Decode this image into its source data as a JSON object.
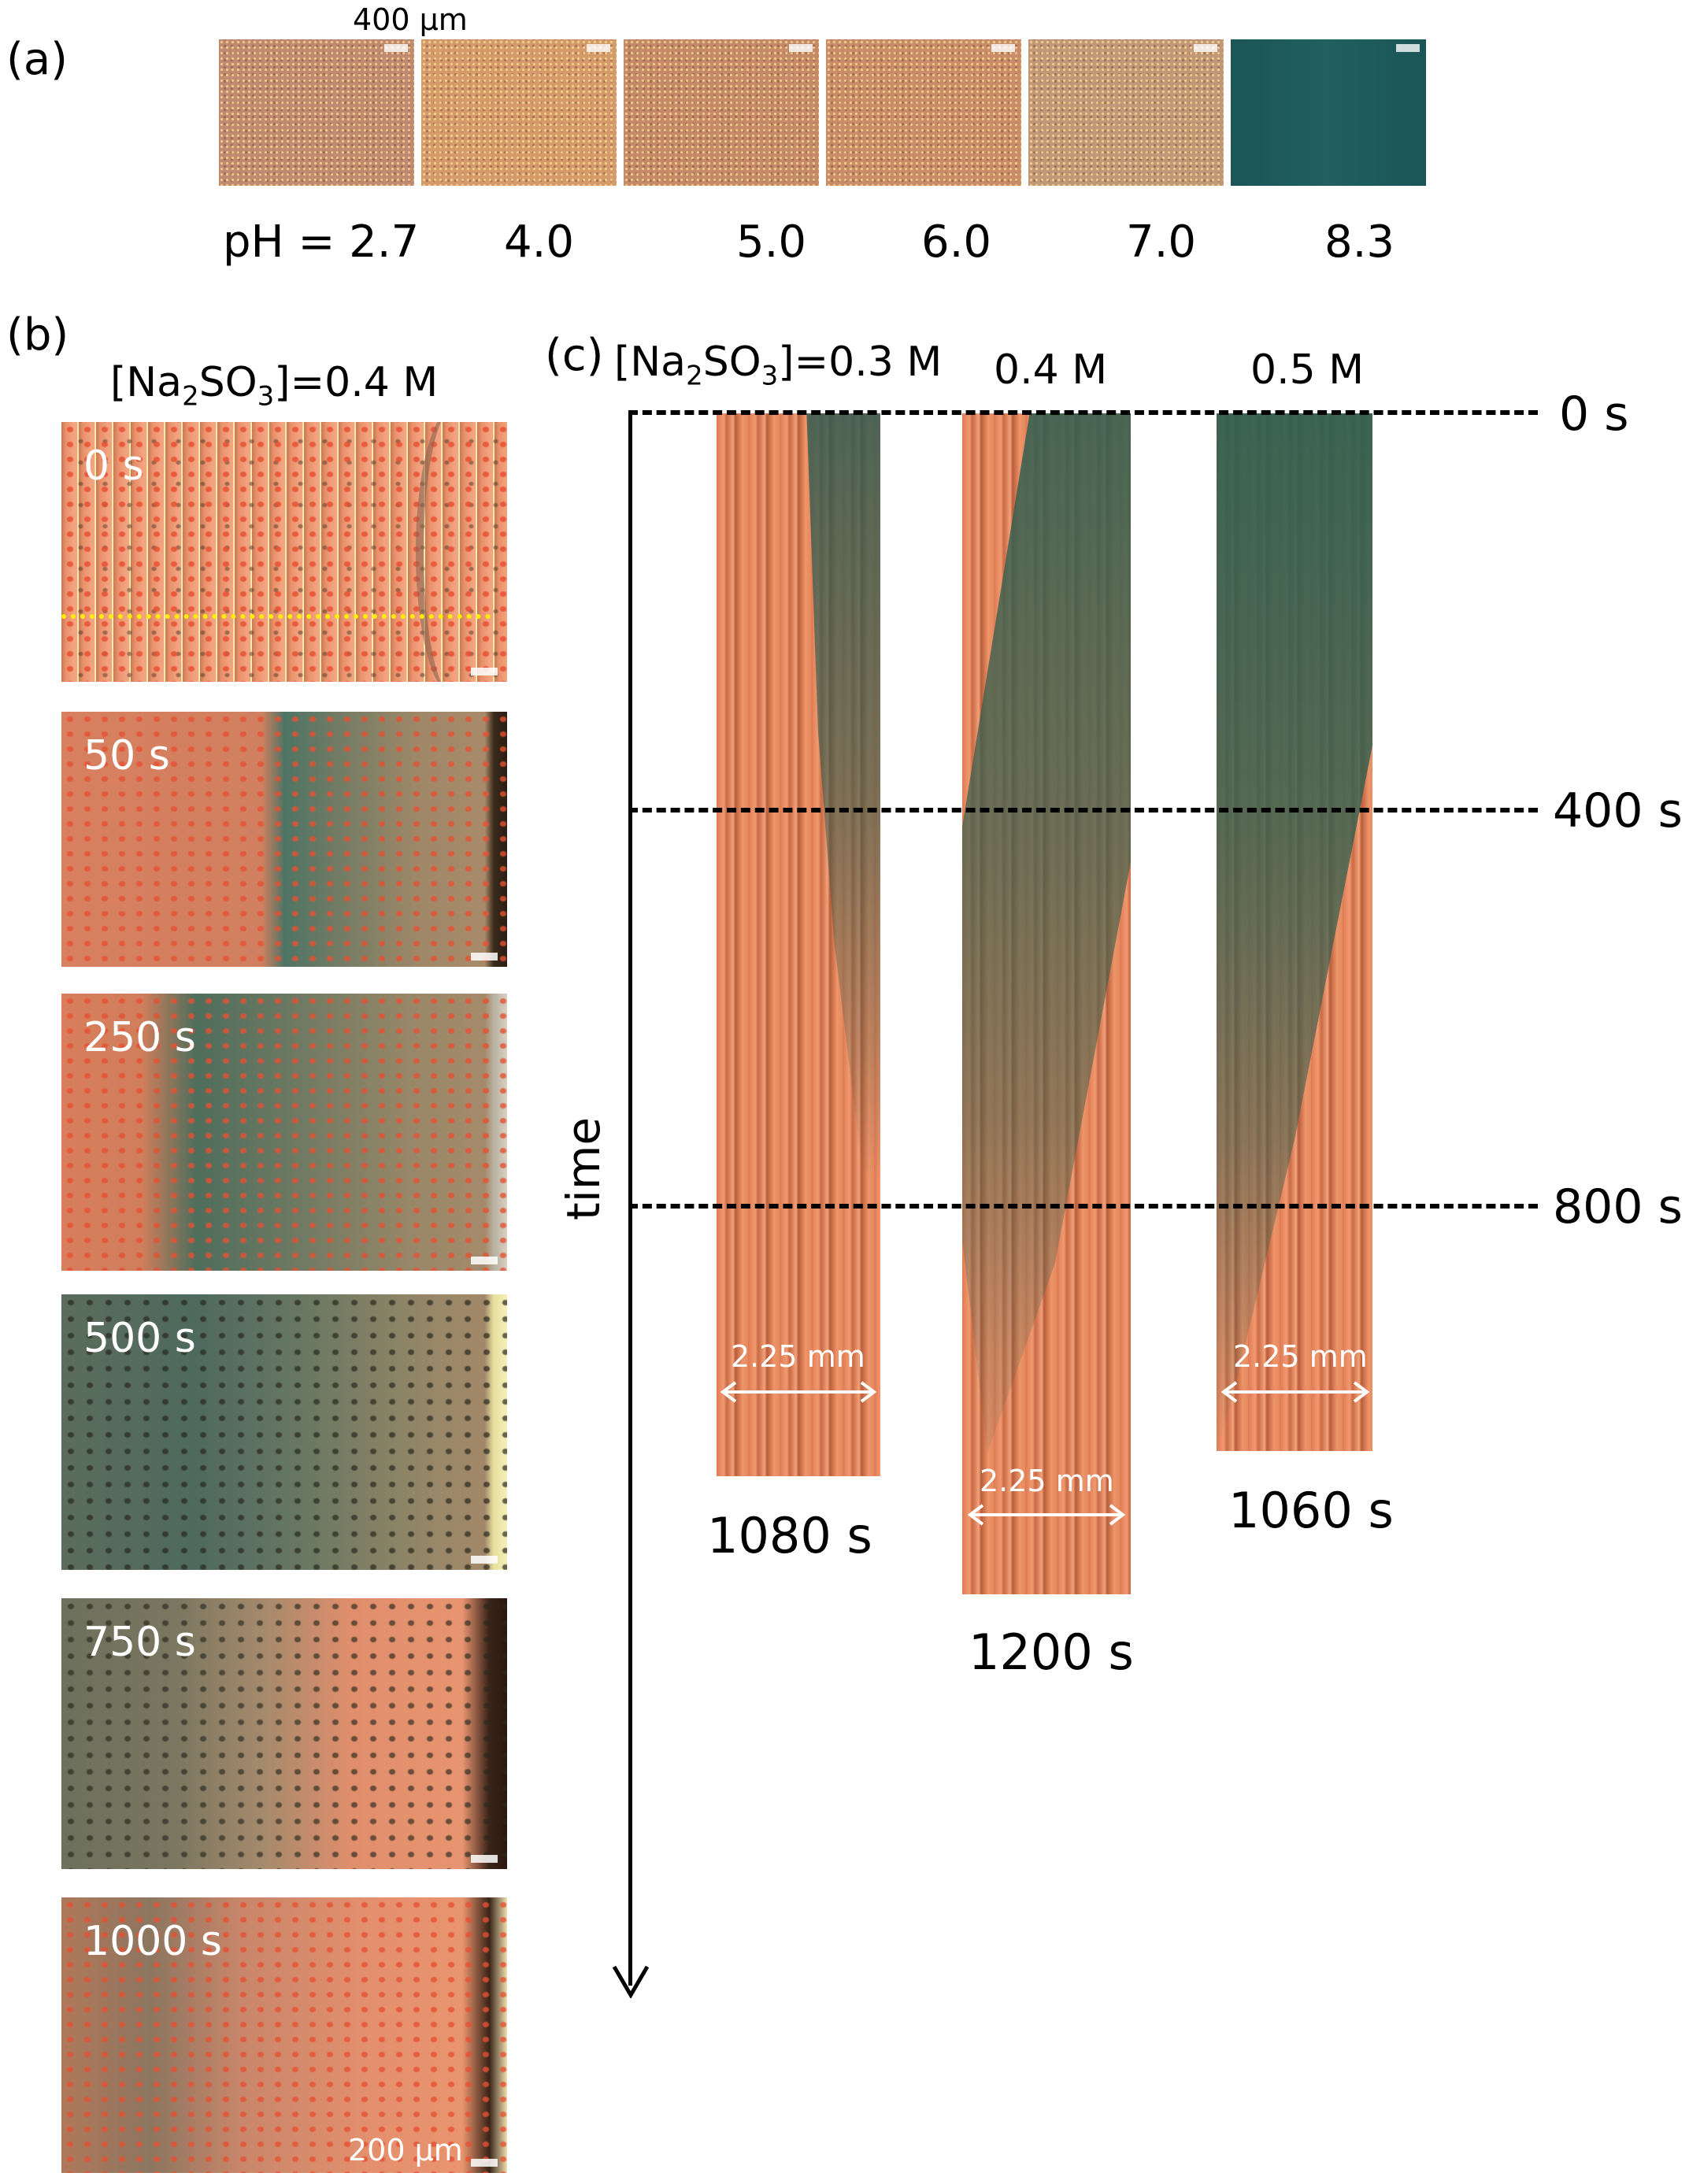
{
  "panel_a": {
    "label": "(a)",
    "scale_text": "400 μm",
    "ph_labels": [
      "pH = 2.7",
      "4.0",
      "5.0",
      "6.0",
      "7.0",
      "8.3"
    ]
  },
  "panel_b": {
    "label": "(b)",
    "concentration_prefix": "[Na",
    "concentration_sub1": "2",
    "concentration_mid": "SO",
    "concentration_sub2": "3",
    "concentration_suffix": "]=0.4 M",
    "frames": [
      "0 s",
      "50 s",
      "250 s",
      "500 s",
      "750 s",
      "1000 s"
    ],
    "scale_text": "200 μm"
  },
  "panel_c": {
    "label": "(c)",
    "concentration_prefix": "[Na",
    "concentration_sub1": "2",
    "concentration_mid": "SO",
    "concentration_sub2": "3",
    "concentration_suffix": "]=0.3 M",
    "column_labels": [
      "0.4 M",
      "0.5 M"
    ],
    "time_ticks": [
      "0 s",
      "400 s",
      "800 s"
    ],
    "axis_label": "time",
    "width_labels": [
      "2.25 mm",
      "2.25 mm",
      "2.25 mm"
    ],
    "end_times": [
      "1080 s",
      "1200 s",
      "1060 s"
    ]
  },
  "colors": {
    "copper": "#e8845c",
    "green_film": "#3d6a62",
    "ph83_tile": "#1d5a5c",
    "dashes": "#000000",
    "width_arrow": "#ffffff"
  }
}
